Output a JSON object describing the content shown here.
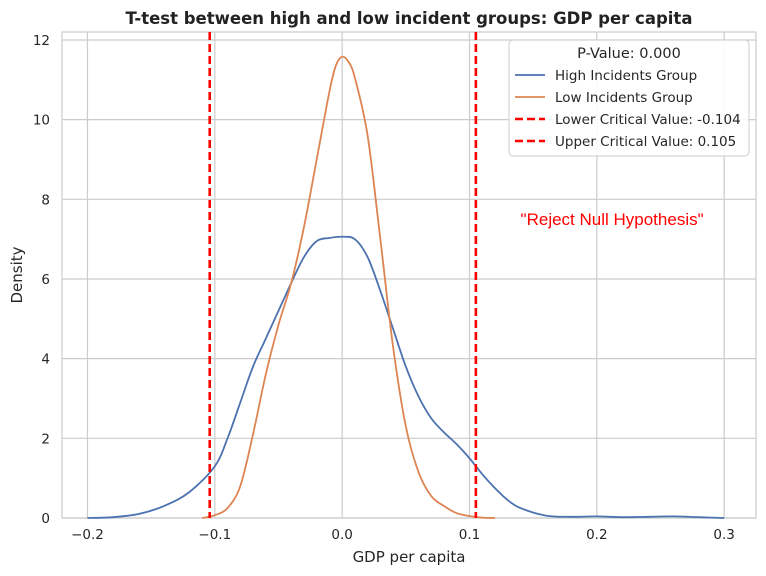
{
  "chart_data": {
    "type": "line",
    "title": "T-test between high and low incident groups: GDP per capita",
    "xlabel": "GDP per capita",
    "ylabel": "Density",
    "xlim": [
      -0.22,
      0.325
    ],
    "ylim": [
      0,
      12.2
    ],
    "xticks": [
      -0.2,
      -0.1,
      0.0,
      0.1,
      0.2,
      0.3
    ],
    "xtick_labels": [
      "−0.2",
      "−0.1",
      "0.0",
      "0.1",
      "0.2",
      "0.3"
    ],
    "yticks": [
      0,
      2,
      4,
      6,
      8,
      10,
      12
    ],
    "ytick_labels": [
      "0",
      "2",
      "4",
      "6",
      "8",
      "10",
      "12"
    ],
    "grid": true,
    "legend_title": "P-Value: 0.000",
    "legend_position": "top-right",
    "annotation": {
      "text": "\"Reject Null Hypothesis\"",
      "x": 0.212,
      "y": 7.35,
      "color": "#ff0000"
    },
    "series": [
      {
        "name": "High Incidents Group",
        "color": "#4c72b0",
        "style": "solid",
        "points": [
          [
            -0.2,
            0.0
          ],
          [
            -0.18,
            0.02
          ],
          [
            -0.16,
            0.1
          ],
          [
            -0.14,
            0.3
          ],
          [
            -0.12,
            0.65
          ],
          [
            -0.1,
            1.3
          ],
          [
            -0.09,
            2.0
          ],
          [
            -0.08,
            2.9
          ],
          [
            -0.07,
            3.8
          ],
          [
            -0.06,
            4.5
          ],
          [
            -0.05,
            5.2
          ],
          [
            -0.04,
            5.9
          ],
          [
            -0.03,
            6.55
          ],
          [
            -0.02,
            6.95
          ],
          [
            -0.01,
            7.03
          ],
          [
            0.0,
            7.06
          ],
          [
            0.01,
            7.0
          ],
          [
            0.02,
            6.55
          ],
          [
            0.03,
            5.7
          ],
          [
            0.04,
            4.75
          ],
          [
            0.05,
            3.8
          ],
          [
            0.06,
            3.05
          ],
          [
            0.07,
            2.5
          ],
          [
            0.08,
            2.15
          ],
          [
            0.09,
            1.85
          ],
          [
            0.1,
            1.5
          ],
          [
            0.11,
            1.1
          ],
          [
            0.12,
            0.75
          ],
          [
            0.13,
            0.45
          ],
          [
            0.14,
            0.25
          ],
          [
            0.16,
            0.06
          ],
          [
            0.18,
            0.03
          ],
          [
            0.2,
            0.04
          ],
          [
            0.22,
            0.02
          ],
          [
            0.24,
            0.03
          ],
          [
            0.26,
            0.04
          ],
          [
            0.28,
            0.02
          ],
          [
            0.3,
            0.0
          ]
        ]
      },
      {
        "name": "Low Incidents Group",
        "color": "#dd8452",
        "style": "solid",
        "points": [
          [
            -0.11,
            0.0
          ],
          [
            -0.1,
            0.07
          ],
          [
            -0.09,
            0.25
          ],
          [
            -0.08,
            0.8
          ],
          [
            -0.07,
            2.1
          ],
          [
            -0.06,
            3.6
          ],
          [
            -0.05,
            4.85
          ],
          [
            -0.04,
            5.9
          ],
          [
            -0.03,
            7.3
          ],
          [
            -0.02,
            9.0
          ],
          [
            -0.01,
            10.7
          ],
          [
            -0.005,
            11.35
          ],
          [
            0.0,
            11.58
          ],
          [
            0.005,
            11.45
          ],
          [
            0.01,
            11.05
          ],
          [
            0.02,
            9.6
          ],
          [
            0.03,
            7.0
          ],
          [
            0.04,
            4.3
          ],
          [
            0.05,
            2.3
          ],
          [
            0.06,
            1.15
          ],
          [
            0.07,
            0.55
          ],
          [
            0.08,
            0.3
          ],
          [
            0.09,
            0.12
          ],
          [
            0.1,
            0.05
          ],
          [
            0.11,
            0.01
          ],
          [
            0.12,
            0.0
          ]
        ]
      },
      {
        "name": "Lower Critical Value: -0.104",
        "color": "#ff0000",
        "style": "dashed",
        "vline": -0.104
      },
      {
        "name": "Upper Critical Value: 0.105",
        "color": "#ff0000",
        "style": "dashed",
        "vline": 0.105
      }
    ]
  }
}
